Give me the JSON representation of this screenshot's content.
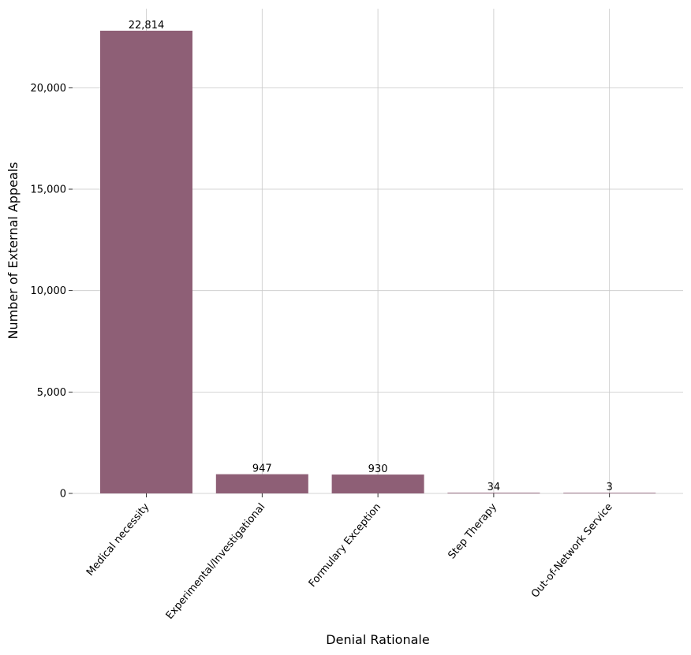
{
  "chart_data": {
    "type": "bar",
    "title": "",
    "xlabel": "Denial Rationale",
    "ylabel": "Number of External Appeals",
    "categories": [
      "Medical necessity",
      "Experimental/Investigational",
      "Formulary Exception",
      "Step Therapy",
      "Out-of-Network Service"
    ],
    "values": [
      22814,
      947,
      930,
      34,
      3
    ],
    "value_labels": [
      "22,814",
      "947",
      "930",
      "34",
      "3"
    ],
    "yticks": [
      0,
      5000,
      10000,
      15000,
      20000
    ],
    "ytick_labels": [
      "0",
      "5,000",
      "10,000",
      "15,000",
      "20,000"
    ],
    "ylim": [
      0,
      23900
    ],
    "grid": true,
    "bar_color": "#8e5f76",
    "grid_color": "#c8c8c8"
  }
}
